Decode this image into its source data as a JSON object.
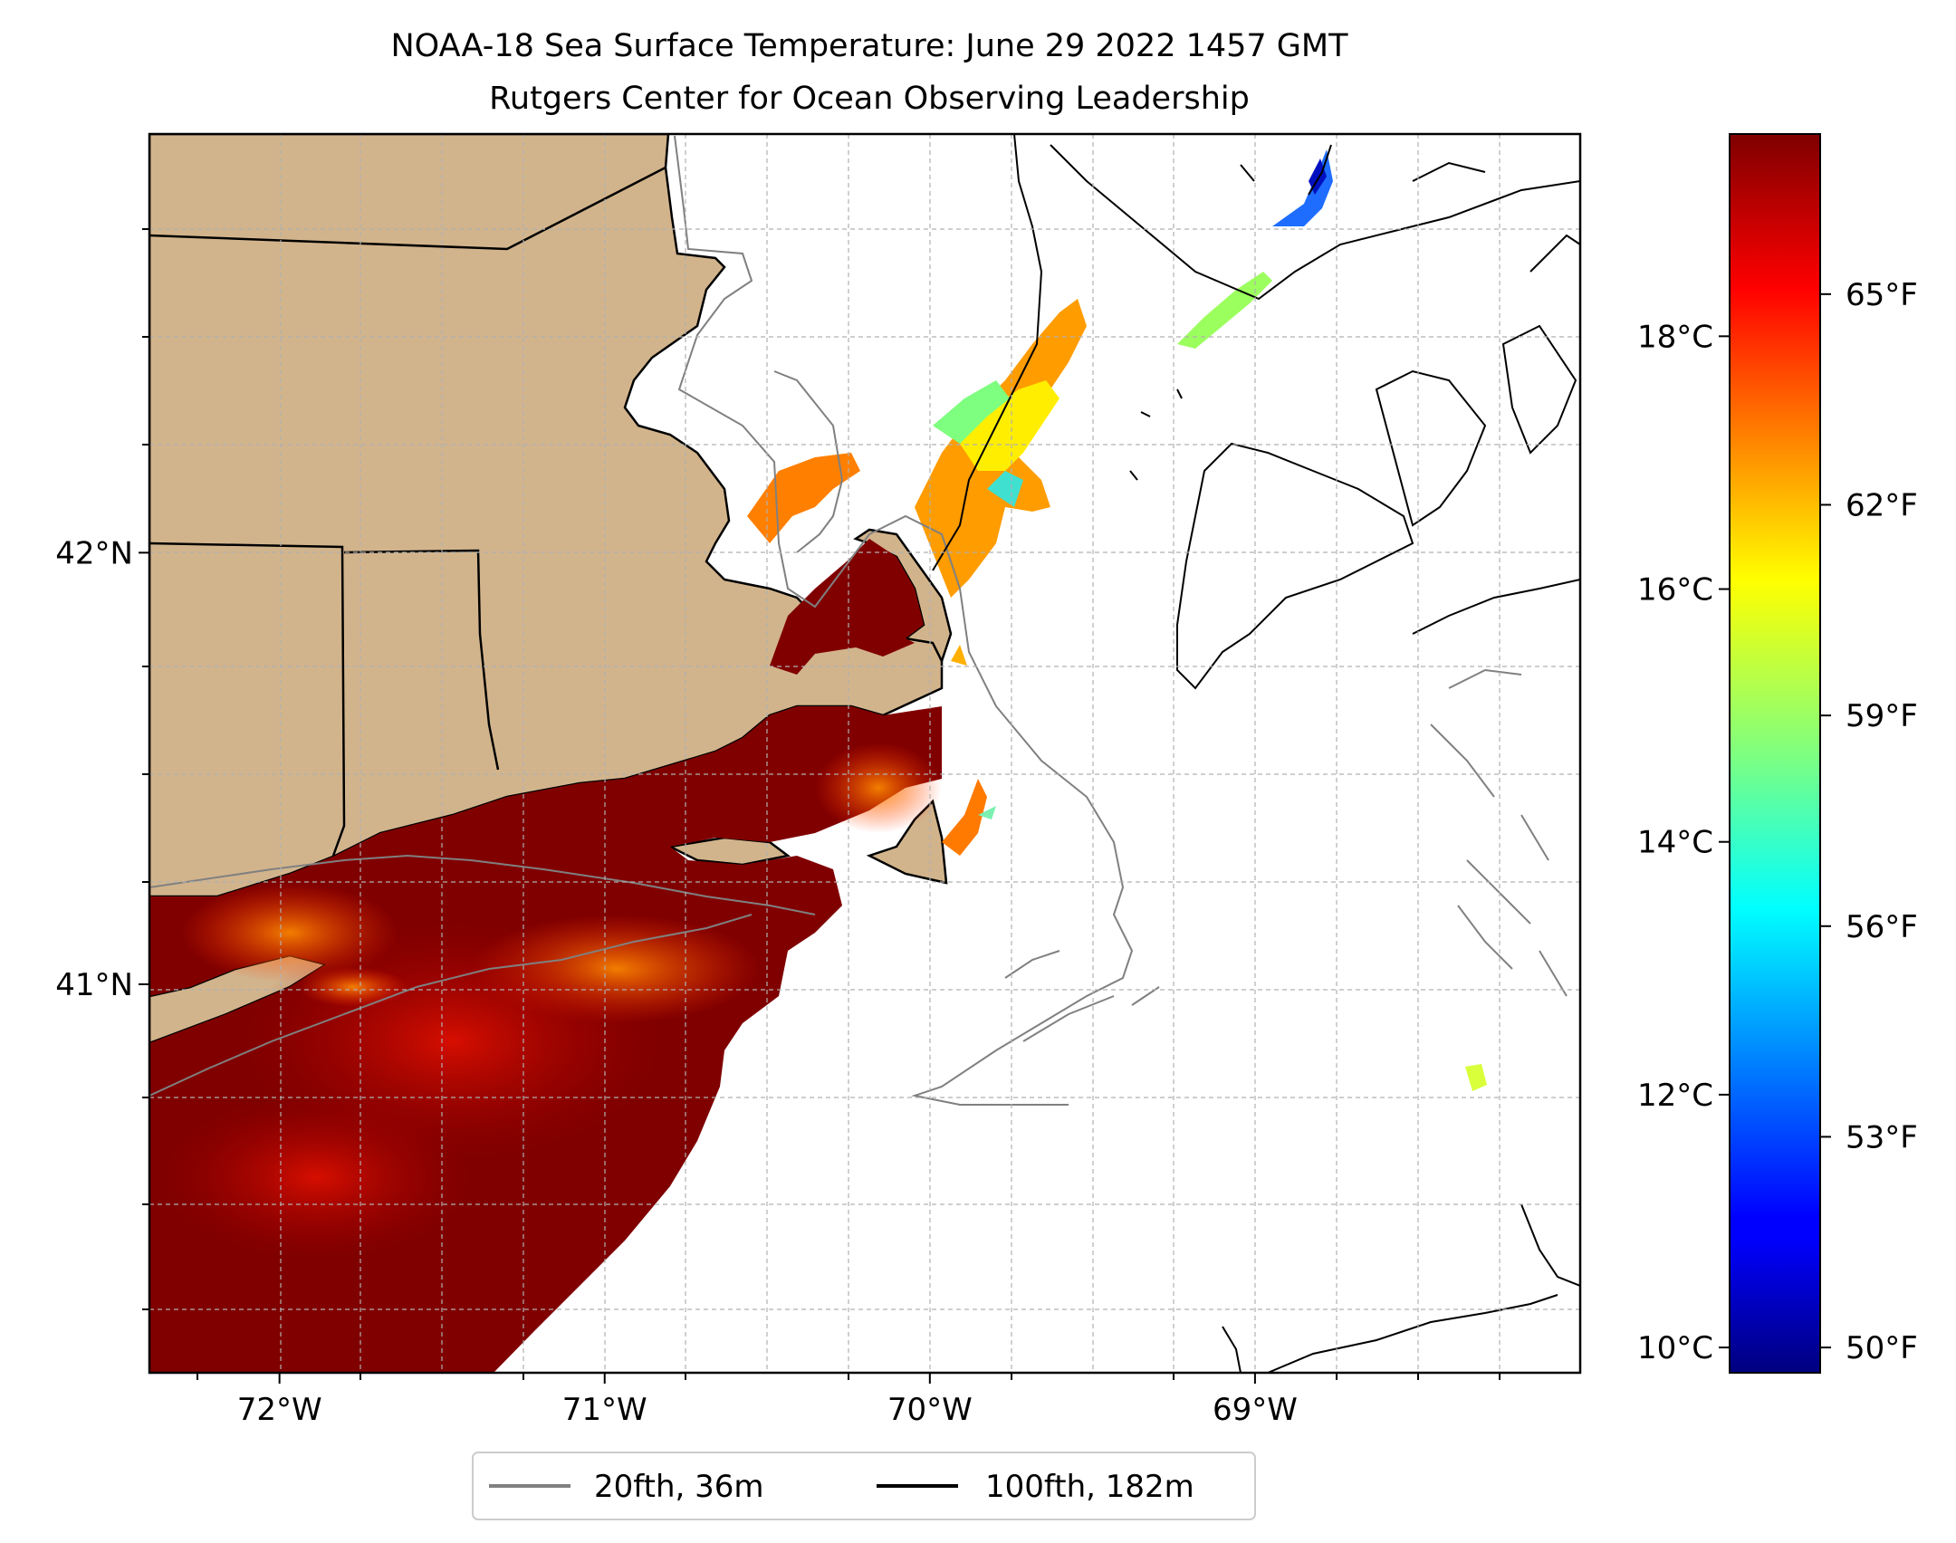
{
  "title": {
    "line1": "NOAA-18 Sea Surface Temperature: June 29 2022 1457 GMT",
    "line2": "Rutgers Center for Ocean Observing Leadership"
  },
  "colors": {
    "land": "#d2b48c",
    "warm_sst": "#800000",
    "isobath_20fth": "#808080",
    "isobath_100fth": "#000000",
    "grid": "#b0b0b0"
  },
  "chart_data": {
    "type": "heatmap",
    "map_extent": {
      "lon": [
        -72.4,
        -68.0
      ],
      "lat": [
        40.1,
        42.97
      ]
    },
    "x_ticks": [
      {
        "value": -72,
        "label": "72°W"
      },
      {
        "value": -71,
        "label": "71°W"
      },
      {
        "value": -70,
        "label": "70°W"
      },
      {
        "value": -69,
        "label": "69°W"
      }
    ],
    "y_ticks": [
      {
        "value": 41,
        "label": "41°N"
      },
      {
        "value": 42,
        "label": "42°N"
      }
    ],
    "grid": true,
    "colorbar": {
      "colormap": "jet",
      "celsius_range": [
        9.8,
        19.6
      ],
      "celsius_ticks": [
        {
          "value": 10,
          "label": "10°C"
        },
        {
          "value": 12,
          "label": "12°C"
        },
        {
          "value": 14,
          "label": "14°C"
        },
        {
          "value": 16,
          "label": "16°C"
        },
        {
          "value": 18,
          "label": "18°C"
        }
      ],
      "fahrenheit_ticks": [
        {
          "value": 50,
          "label": "50°F"
        },
        {
          "value": 53,
          "label": "53°F"
        },
        {
          "value": 56,
          "label": "56°F"
        },
        {
          "value": 59,
          "label": "59°F"
        },
        {
          "value": 62,
          "label": "62°F"
        },
        {
          "value": 65,
          "label": "65°F"
        }
      ]
    },
    "legend": {
      "placement": "bottom-center",
      "entries": [
        {
          "label": "20fth, 36m",
          "color": "#808080"
        },
        {
          "label": "100fth, 182m",
          "color": "#000000"
        }
      ]
    }
  }
}
